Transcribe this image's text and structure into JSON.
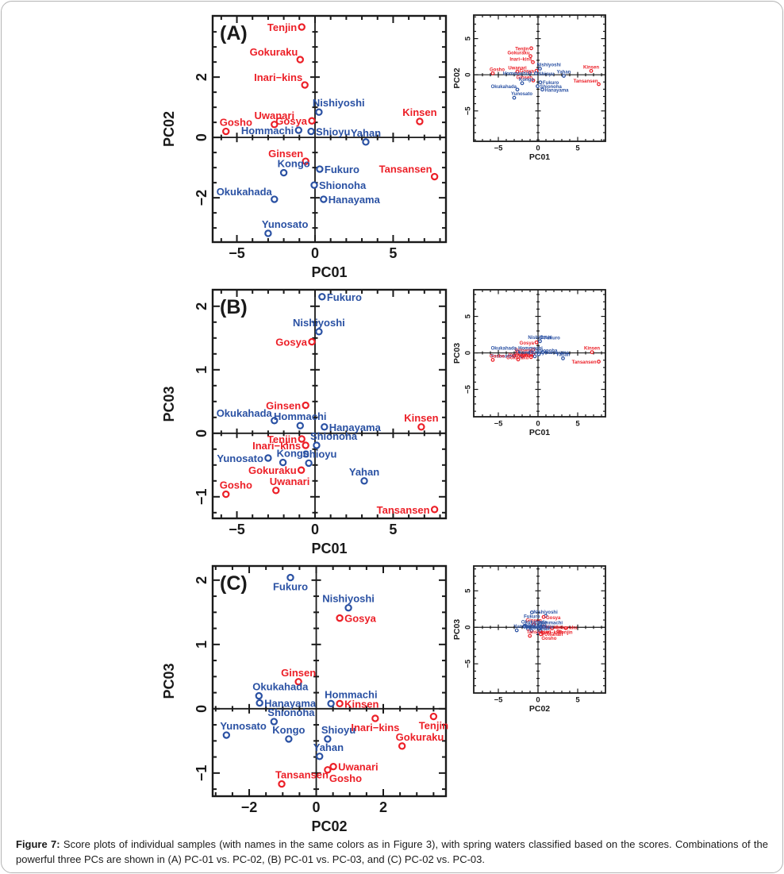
{
  "page": {
    "background": "#ffffff",
    "border_color": "#b4b4b4"
  },
  "colors": {
    "red": "#ec1f27",
    "blue": "#2a51a3",
    "axis": "#1a1a1a"
  },
  "caption": {
    "prefix": "Figure 7:",
    "text": " Score plots of individual samples (with names in the same colors as in Figure 3), with spring waters classified based on the scores. Combinations of the powerful three PCs are shown in (A) PC-01 vs. PC-02, (B) PC-01 vs. PC-03, and (C) PC-02 vs. PC-03."
  },
  "chart_data": [
    {
      "type": "scatter",
      "id": "A",
      "panel_label": "(A)",
      "xlabel": "PC01",
      "ylabel": "PC02",
      "main": {
        "xlim": [
          -6.55,
          8.38
        ],
        "ylim": [
          -3.47,
          4.03
        ],
        "xmajor": 5,
        "xminor": 1,
        "ymajor": 2,
        "yminor": 0.5,
        "xtick_labels": [
          "−5",
          "0",
          "5"
        ],
        "ytick_labels": [
          "−2",
          "0",
          "2"
        ]
      },
      "inset": {
        "xlim": [
          -8.1,
          8.5
        ],
        "ylim": [
          -9.2,
          8.25
        ],
        "xmajor": 5,
        "xminor": 1,
        "ymajor": 5,
        "yminor": 1,
        "xtick_labels": [
          "−5",
          "0",
          "5"
        ],
        "ytick_labels": [
          "−5",
          "0",
          "5"
        ]
      },
      "points": [
        {
          "name": "Tenjin",
          "group": "red",
          "x": -0.85,
          "y": 3.66,
          "pos": "l"
        },
        {
          "name": "Gokuraku",
          "group": "red",
          "x": -0.95,
          "y": 2.58,
          "pos": "al"
        },
        {
          "name": "Inari−kins",
          "group": "red",
          "x": -0.65,
          "y": 1.74,
          "pos": "al"
        },
        {
          "name": "Nishiyoshi",
          "group": "blue",
          "x": 0.25,
          "y": 0.84,
          "pos": "ar"
        },
        {
          "name": "Gosya",
          "group": "red",
          "x": -0.2,
          "y": 0.55,
          "pos": "l"
        },
        {
          "name": "Kinsen",
          "group": "red",
          "x": 6.7,
          "y": 0.53,
          "pos": "a"
        },
        {
          "name": "Uwanari",
          "group": "red",
          "x": -2.6,
          "y": 0.43,
          "pos": "a"
        },
        {
          "name": "Hommachi",
          "group": "blue",
          "x": -1.05,
          "y": 0.24,
          "pos": "l"
        },
        {
          "name": "Gosho",
          "group": "red",
          "x": -5.7,
          "y": 0.2,
          "pos": "ar"
        },
        {
          "name": "Shioyu",
          "group": "blue",
          "x": -0.25,
          "y": 0.2,
          "pos": "r"
        },
        {
          "name": "Yahan",
          "group": "blue",
          "x": 3.25,
          "y": -0.15,
          "pos": "a"
        },
        {
          "name": "Ginsen",
          "group": "red",
          "x": -0.6,
          "y": -0.79,
          "pos": "al"
        },
        {
          "name": "Fukuro",
          "group": "blue",
          "x": 0.3,
          "y": -1.05,
          "pos": "r"
        },
        {
          "name": "Kongo",
          "group": "blue",
          "x": -2.0,
          "y": -1.17,
          "pos": "ar"
        },
        {
          "name": "Tansansen",
          "group": "red",
          "x": 7.65,
          "y": -1.3,
          "pos": "al"
        },
        {
          "name": "Shionoha",
          "group": "blue",
          "x": -0.05,
          "y": -1.58,
          "pos": "r"
        },
        {
          "name": "Okukahada",
          "group": "blue",
          "x": -2.6,
          "y": -2.05,
          "pos": "al"
        },
        {
          "name": "Hanayama",
          "group": "blue",
          "x": 0.55,
          "y": -2.05,
          "pos": "r"
        },
        {
          "name": "Yunosato",
          "group": "blue",
          "x": -3.0,
          "y": -3.18,
          "pos": "ar"
        }
      ]
    },
    {
      "type": "scatter",
      "id": "B",
      "panel_label": "(B)",
      "xlabel": "PC01",
      "ylabel": "PC03",
      "main": {
        "xlim": [
          -6.55,
          8.38
        ],
        "ylim": [
          -1.34,
          2.26
        ],
        "xmajor": 5,
        "xminor": 1,
        "ymajor": 1,
        "yminor": 0.25,
        "xtick_labels": [
          "−5",
          "0",
          "5"
        ],
        "ytick_labels": [
          "−1",
          "0",
          "1",
          "2"
        ]
      },
      "inset": {
        "xlim": [
          -8.1,
          8.5
        ],
        "ylim": [
          -8.75,
          8.65
        ],
        "xmajor": 5,
        "xminor": 1,
        "ymajor": 5,
        "yminor": 1,
        "xtick_labels": [
          "−5",
          "0",
          "5"
        ],
        "ytick_labels": [
          "−5",
          "0",
          "5"
        ]
      },
      "points": [
        {
          "name": "Fukuro",
          "group": "blue",
          "x": 0.45,
          "y": 2.15,
          "pos": "r"
        },
        {
          "name": "Nishiyoshi",
          "group": "blue",
          "x": 0.25,
          "y": 1.6,
          "pos": "a"
        },
        {
          "name": "Gosya",
          "group": "red",
          "x": -0.2,
          "y": 1.44,
          "pos": "l"
        },
        {
          "name": "Ginsen",
          "group": "red",
          "x": -0.6,
          "y": 0.44,
          "pos": "l"
        },
        {
          "name": "Okukahada",
          "group": "blue",
          "x": -2.6,
          "y": 0.2,
          "pos": "al"
        },
        {
          "name": "Hommachi",
          "group": "blue",
          "x": -0.95,
          "y": 0.12,
          "pos": "a"
        },
        {
          "name": "Hanayama",
          "group": "blue",
          "x": 0.6,
          "y": 0.1,
          "pos": "r"
        },
        {
          "name": "Kinsen",
          "group": "red",
          "x": 6.8,
          "y": 0.1,
          "pos": "a"
        },
        {
          "name": "Tenjin",
          "group": "red",
          "x": -0.85,
          "y": -0.09,
          "pos": "l"
        },
        {
          "name": "Inari−kins",
          "group": "red",
          "x": -0.6,
          "y": -0.19,
          "pos": "l"
        },
        {
          "name": "Shionoha",
          "group": "blue",
          "x": 0.1,
          "y": -0.19,
          "pos": "ar"
        },
        {
          "name": "Yunosato",
          "group": "blue",
          "x": -3.0,
          "y": -0.39,
          "pos": "l"
        },
        {
          "name": "Kongo",
          "group": "blue",
          "x": -2.05,
          "y": -0.46,
          "pos": "ar"
        },
        {
          "name": "Shioyu",
          "group": "blue",
          "x": -0.4,
          "y": -0.47,
          "pos": "ar"
        },
        {
          "name": "Gokuraku",
          "group": "red",
          "x": -0.88,
          "y": -0.58,
          "pos": "l"
        },
        {
          "name": "Yahan",
          "group": "blue",
          "x": 3.15,
          "y": -0.75,
          "pos": "a"
        },
        {
          "name": "Uwanari",
          "group": "red",
          "x": -2.5,
          "y": -0.9,
          "pos": "ar"
        },
        {
          "name": "Gosho",
          "group": "red",
          "x": -5.7,
          "y": -0.96,
          "pos": "ar"
        },
        {
          "name": "Tansansen",
          "group": "red",
          "x": 7.65,
          "y": -1.2,
          "pos": "l"
        }
      ]
    },
    {
      "type": "scatter",
      "id": "C",
      "panel_label": "(C)",
      "xlabel": "PC02",
      "ylabel": "PC03",
      "main": {
        "xlim": [
          -3.09,
          3.87
        ],
        "ylim": [
          -1.36,
          2.22
        ],
        "xmajor": 2,
        "xminor": 0.5,
        "ymajor": 1,
        "yminor": 0.25,
        "xtick_labels": [
          "−2",
          "0",
          "2"
        ],
        "ytick_labels": [
          "−1",
          "0",
          "1",
          "2"
        ]
      },
      "inset": {
        "xlim": [
          -8.1,
          8.5
        ],
        "ylim": [
          -9.0,
          8.4
        ],
        "xmajor": 5,
        "xminor": 1,
        "ymajor": 5,
        "yminor": 1,
        "xtick_labels": [
          "−5",
          "0",
          "5"
        ],
        "ytick_labels": [
          "−5",
          "0",
          "5"
        ]
      },
      "points": [
        {
          "name": "Fukuro",
          "group": "blue",
          "x": -0.77,
          "y": 2.04,
          "pos": "b"
        },
        {
          "name": "Nishiyoshi",
          "group": "blue",
          "x": 0.96,
          "y": 1.57,
          "pos": "a"
        },
        {
          "name": "Gosya",
          "group": "red",
          "x": 0.7,
          "y": 1.41,
          "pos": "r"
        },
        {
          "name": "Ginsen",
          "group": "red",
          "x": -0.53,
          "y": 0.42,
          "pos": "a"
        },
        {
          "name": "Okukahada",
          "group": "blue",
          "x": -1.71,
          "y": 0.2,
          "pos": "ar"
        },
        {
          "name": "Hanayama",
          "group": "blue",
          "x": -1.69,
          "y": 0.09,
          "pos": "r"
        },
        {
          "name": "Hommachi",
          "group": "blue",
          "x": 0.44,
          "y": 0.08,
          "pos": "ar"
        },
        {
          "name": "Kinsen",
          "group": "red",
          "x": 0.7,
          "y": 0.08,
          "pos": "r"
        },
        {
          "name": "Shionoha",
          "group": "blue",
          "x": -1.26,
          "y": -0.2,
          "pos": "ar"
        },
        {
          "name": "Inari−kins",
          "group": "red",
          "x": 1.76,
          "y": -0.15,
          "pos": "b"
        },
        {
          "name": "Tenjin",
          "group": "red",
          "x": 3.5,
          "y": -0.12,
          "pos": "b"
        },
        {
          "name": "Yunosato",
          "group": "blue",
          "x": -2.68,
          "y": -0.41,
          "pos": "ar"
        },
        {
          "name": "Kongo",
          "group": "blue",
          "x": -0.82,
          "y": -0.47,
          "pos": "a"
        },
        {
          "name": "Shioyu",
          "group": "blue",
          "x": 0.34,
          "y": -0.47,
          "pos": "ar"
        },
        {
          "name": "Gokuraku",
          "group": "red",
          "x": 2.56,
          "y": -0.58,
          "pos": "ar"
        },
        {
          "name": "Yahan",
          "group": "blue",
          "x": 0.1,
          "y": -0.74,
          "pos": "ar"
        },
        {
          "name": "Uwanari",
          "group": "red",
          "x": 0.51,
          "y": -0.9,
          "pos": "r"
        },
        {
          "name": "Gosho",
          "group": "red",
          "x": 0.34,
          "y": -0.95,
          "pos": "br"
        },
        {
          "name": "Tansansen",
          "group": "red",
          "x": -1.03,
          "y": -1.17,
          "pos": "ar"
        }
      ]
    }
  ]
}
